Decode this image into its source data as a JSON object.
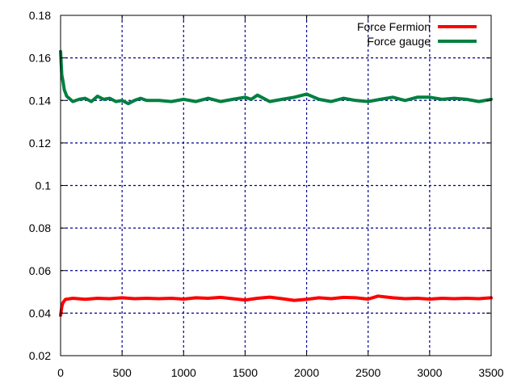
{
  "chart_data": {
    "type": "line",
    "xlim": [
      0,
      3500
    ],
    "ylim": [
      0.02,
      0.18
    ],
    "x_ticks": [
      0,
      500,
      1000,
      1500,
      2000,
      2500,
      3000,
      3500
    ],
    "y_ticks": [
      0.02,
      0.04,
      0.06,
      0.08,
      0.1,
      0.12,
      0.14,
      0.16,
      0.18
    ],
    "x_tick_labels": [
      "0",
      "500",
      "1000",
      "1500",
      "2000",
      "2500",
      "3000",
      "3500"
    ],
    "y_tick_labels": [
      "0.02",
      "0.04",
      "0.06",
      "0.08",
      "0.1",
      "0.12",
      "0.14",
      "0.16",
      "0.18"
    ],
    "grid": true,
    "legend_position": "top-right",
    "series": [
      {
        "name": "Force Fermion",
        "color": "#ff0000",
        "points": [
          [
            0,
            0.039
          ],
          [
            5,
            0.041
          ],
          [
            10,
            0.043
          ],
          [
            20,
            0.045
          ],
          [
            40,
            0.0465
          ],
          [
            100,
            0.047
          ],
          [
            200,
            0.0465
          ],
          [
            300,
            0.047
          ],
          [
            400,
            0.0468
          ],
          [
            500,
            0.0472
          ],
          [
            600,
            0.0468
          ],
          [
            700,
            0.047
          ],
          [
            800,
            0.0468
          ],
          [
            900,
            0.047
          ],
          [
            1000,
            0.0466
          ],
          [
            1100,
            0.0472
          ],
          [
            1200,
            0.047
          ],
          [
            1300,
            0.0474
          ],
          [
            1400,
            0.0468
          ],
          [
            1500,
            0.0462
          ],
          [
            1600,
            0.047
          ],
          [
            1700,
            0.0475
          ],
          [
            1800,
            0.0468
          ],
          [
            1900,
            0.046
          ],
          [
            2000,
            0.0465
          ],
          [
            2100,
            0.0472
          ],
          [
            2200,
            0.0468
          ],
          [
            2300,
            0.0474
          ],
          [
            2400,
            0.0472
          ],
          [
            2500,
            0.0466
          ],
          [
            2580,
            0.048
          ],
          [
            2700,
            0.0472
          ],
          [
            2800,
            0.0468
          ],
          [
            2900,
            0.047
          ],
          [
            3000,
            0.0466
          ],
          [
            3100,
            0.047
          ],
          [
            3200,
            0.0468
          ],
          [
            3300,
            0.047
          ],
          [
            3400,
            0.0468
          ],
          [
            3500,
            0.0472
          ]
        ]
      },
      {
        "name": "Force gauge",
        "color": "#008040",
        "points": [
          [
            0,
            0.163
          ],
          [
            10,
            0.152
          ],
          [
            20,
            0.149
          ],
          [
            30,
            0.145
          ],
          [
            50,
            0.142
          ],
          [
            100,
            0.1395
          ],
          [
            150,
            0.1405
          ],
          [
            200,
            0.141
          ],
          [
            250,
            0.1395
          ],
          [
            300,
            0.142
          ],
          [
            350,
            0.1405
          ],
          [
            400,
            0.141
          ],
          [
            450,
            0.1395
          ],
          [
            500,
            0.14
          ],
          [
            550,
            0.1385
          ],
          [
            600,
            0.14
          ],
          [
            650,
            0.141
          ],
          [
            700,
            0.14
          ],
          [
            800,
            0.14
          ],
          [
            900,
            0.1395
          ],
          [
            1000,
            0.1405
          ],
          [
            1100,
            0.1395
          ],
          [
            1200,
            0.141
          ],
          [
            1300,
            0.1395
          ],
          [
            1400,
            0.1405
          ],
          [
            1500,
            0.1415
          ],
          [
            1550,
            0.1405
          ],
          [
            1600,
            0.1425
          ],
          [
            1700,
            0.1395
          ],
          [
            1800,
            0.1405
          ],
          [
            1900,
            0.1415
          ],
          [
            2000,
            0.143
          ],
          [
            2100,
            0.1405
          ],
          [
            2200,
            0.1395
          ],
          [
            2300,
            0.141
          ],
          [
            2400,
            0.14
          ],
          [
            2500,
            0.1395
          ],
          [
            2600,
            0.1405
          ],
          [
            2700,
            0.1415
          ],
          [
            2800,
            0.14
          ],
          [
            2900,
            0.1415
          ],
          [
            3000,
            0.1415
          ],
          [
            3100,
            0.1405
          ],
          [
            3200,
            0.141
          ],
          [
            3300,
            0.1405
          ],
          [
            3400,
            0.1395
          ],
          [
            3500,
            0.1405
          ]
        ]
      }
    ]
  }
}
